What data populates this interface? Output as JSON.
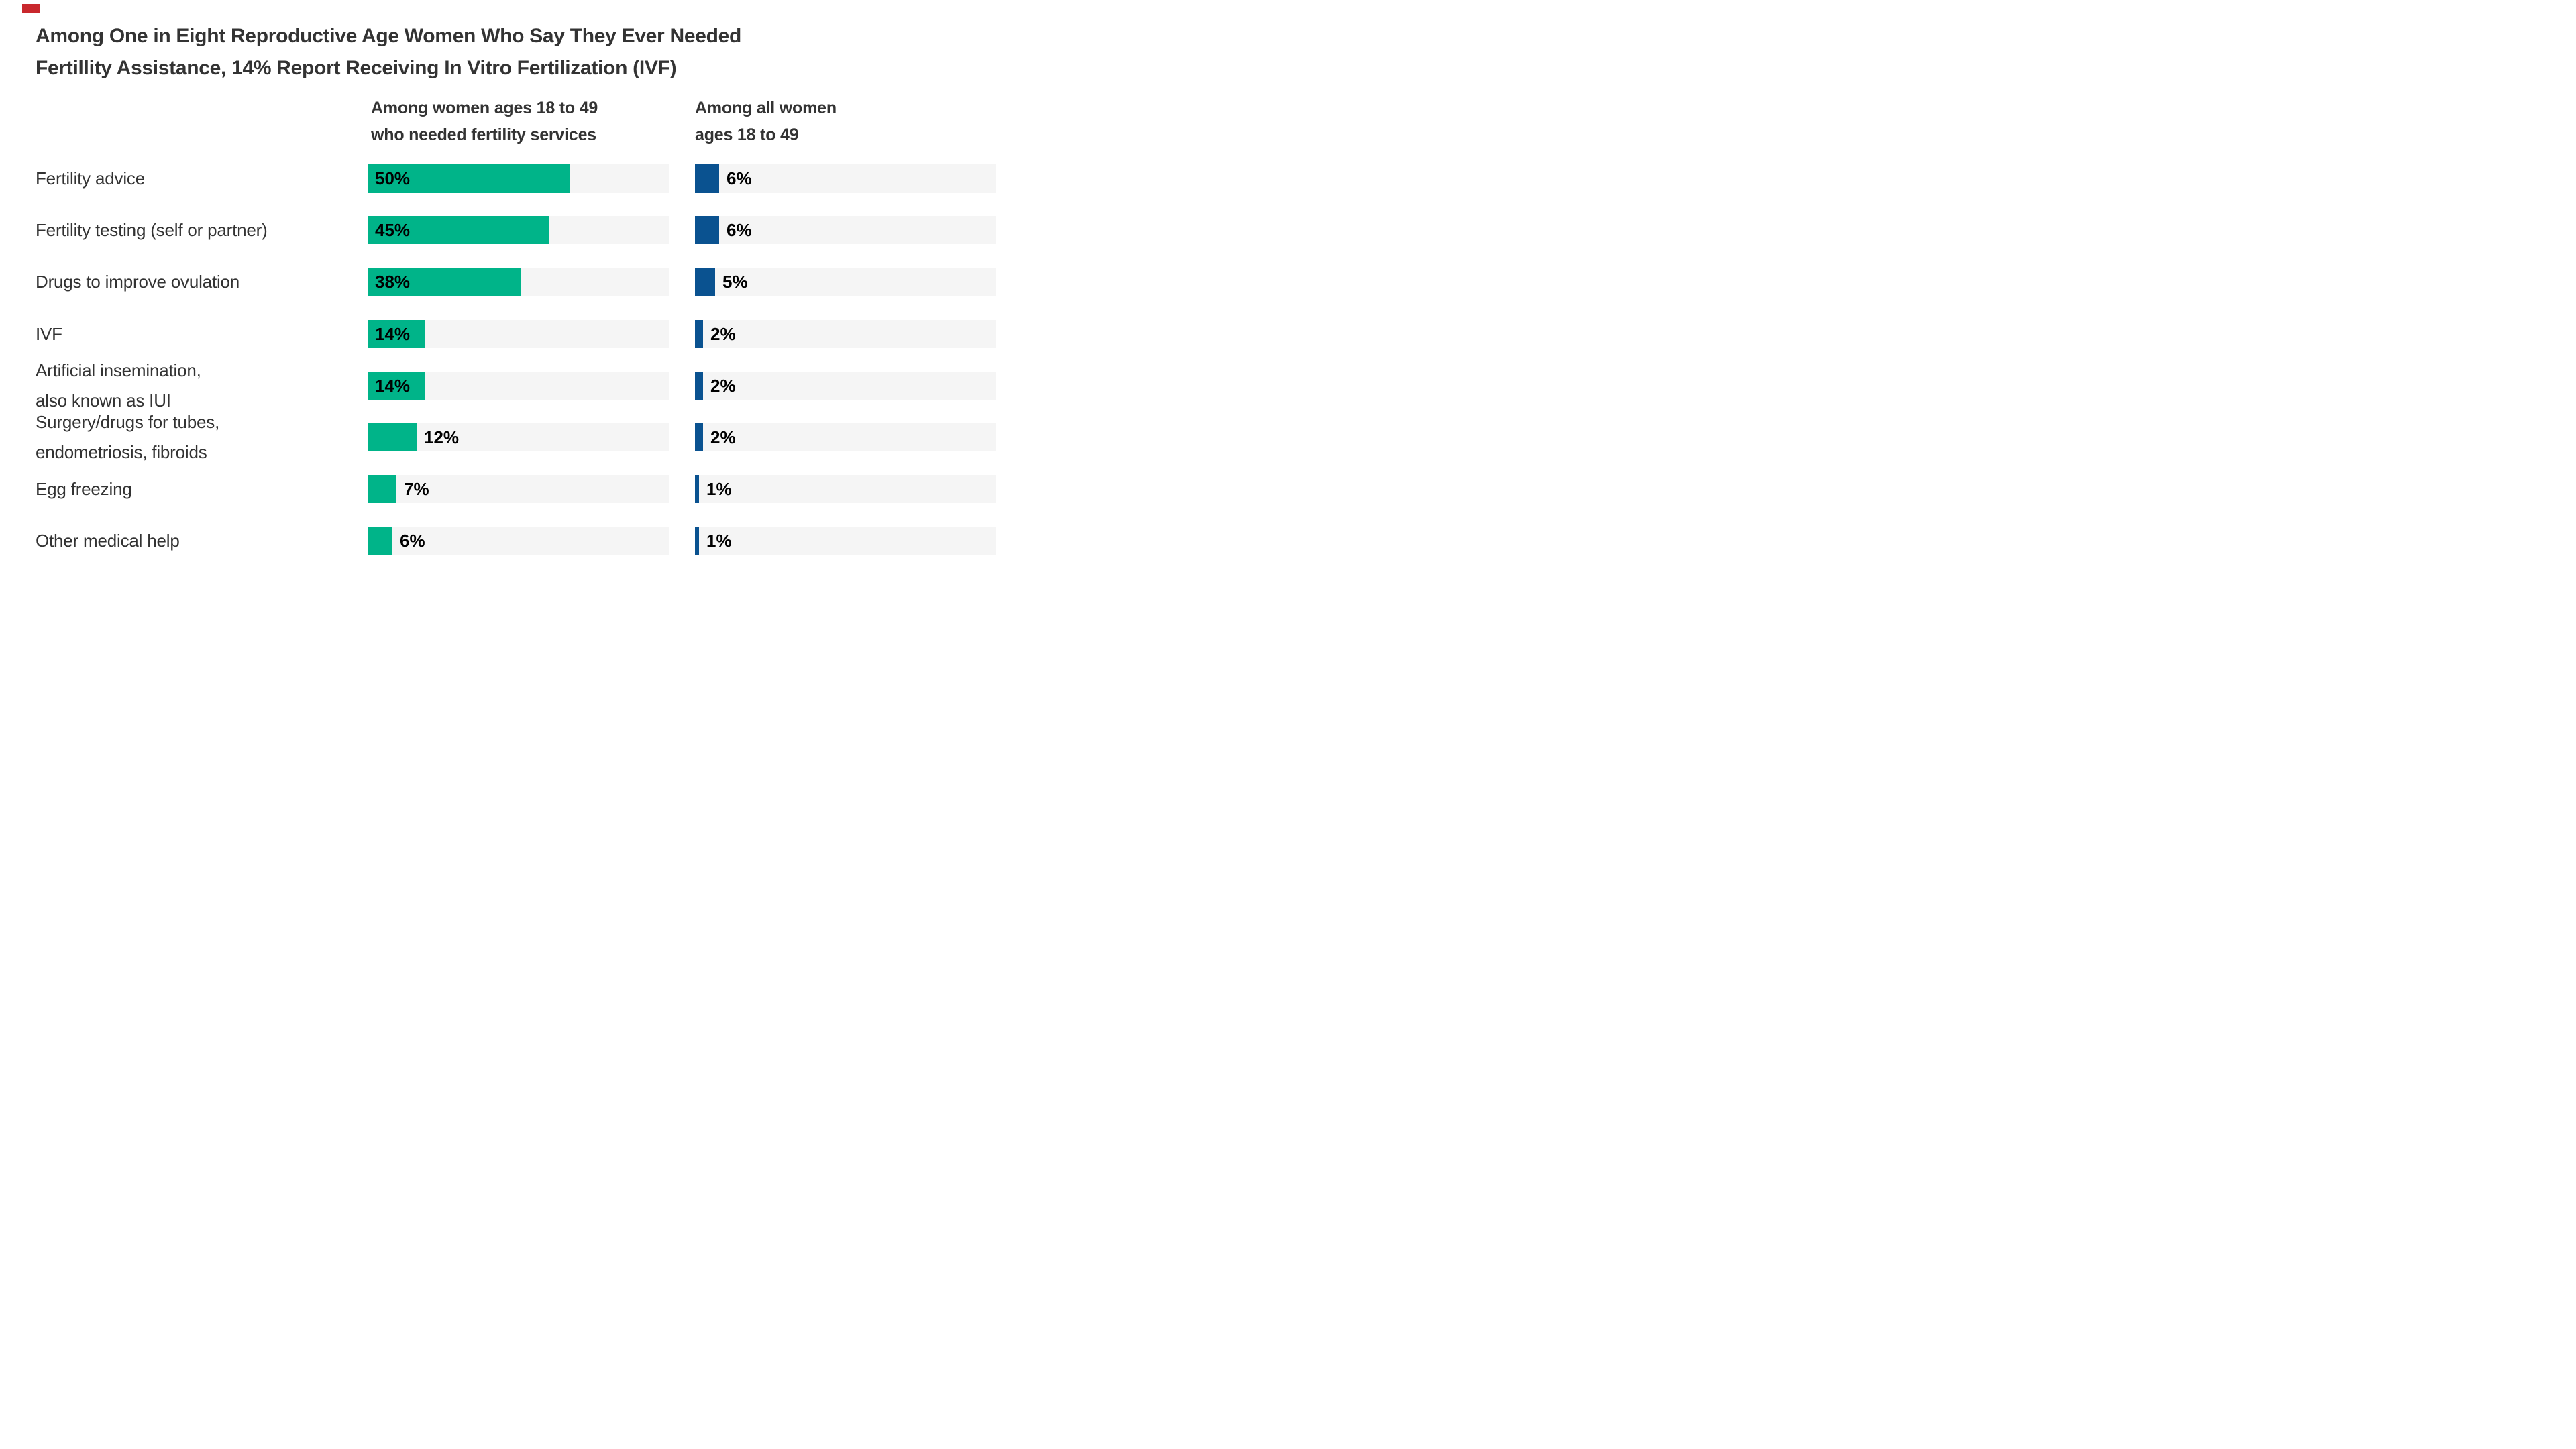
{
  "logo": {
    "color": "#C9282D"
  },
  "title": {
    "line1": "Among One in Eight Reproductive Age Women Who Say They Ever Needed",
    "line2": "Fertillity Assistance, 14% Report Receiving In Vitro Fertilization (IVF)"
  },
  "columns": [
    {
      "header_line1": "Among women ages 18 to 49",
      "header_line2": "who needed fertility services"
    },
    {
      "header_line1": "Among all women",
      "header_line2": "ages 18 to 49"
    }
  ],
  "chart_data": {
    "type": "bar",
    "orientation": "horizontal",
    "title": "Among One in Eight Reproductive Age Women Who Say They Ever Needed Fertillity Assistance, 14% Report Receiving In Vitro Fertilization (IVF)",
    "categories": [
      "Fertility advice",
      "Fertility testing (self or partner)",
      "Drugs to improve ovulation",
      "IVF",
      "Artificial insemination,\nalso known as IUI",
      "Surgery/drugs for tubes,\nendometriosis, fibroids",
      "Egg freezing",
      "Other medical help"
    ],
    "series": [
      {
        "name": "Among women ages 18 to 49 who needed fertility services",
        "color": "#00B489",
        "values": [
          50,
          45,
          38,
          14,
          14,
          12,
          7,
          6
        ],
        "label_inside_min": 14
      },
      {
        "name": "Among all women ages 18 to 49",
        "color": "#0A5290",
        "values": [
          6,
          6,
          5,
          2,
          2,
          2,
          1,
          1
        ],
        "label_inside_min": 999
      }
    ],
    "value_suffix": "%",
    "xlim": [
      0,
      74.7
    ],
    "grid": false,
    "legend_position": "column-headers",
    "track_color": "#f5f5f5",
    "value_label_color": "#000000",
    "text_color": "#333333"
  },
  "layout_note": "bars scaled ~6px per percentage point on a 448px track"
}
